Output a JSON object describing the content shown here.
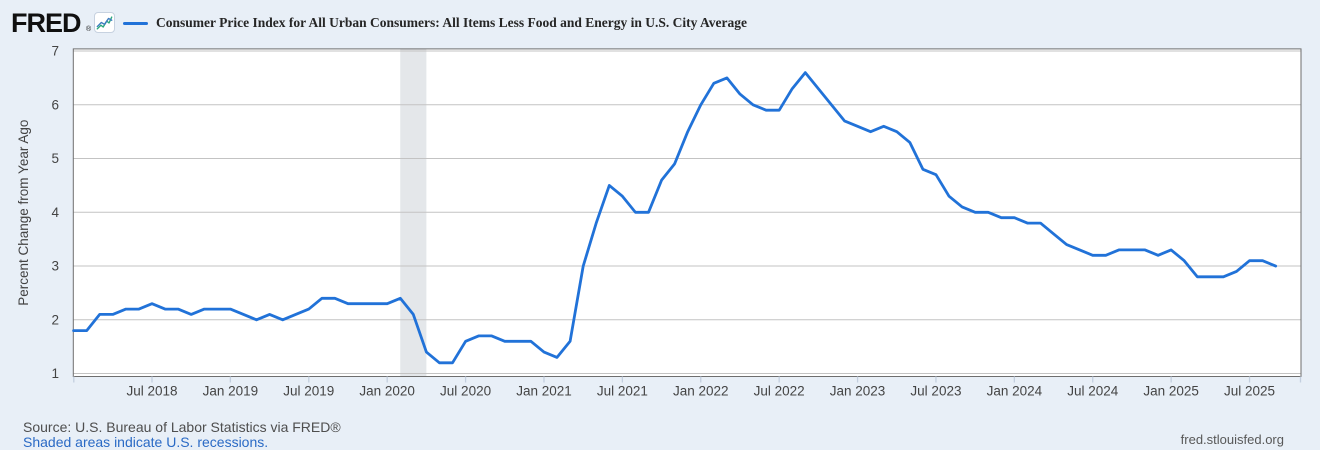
{
  "header": {
    "logo_text": "FRED",
    "logo_mark": "®"
  },
  "footer": {
    "source_text": "Source: U.S. Bureau of Labor Statistics via FRED®",
    "recession_note": "Shaded areas indicate U.S. recessions.",
    "site_url": "fred.stlouisfed.org"
  },
  "colors": {
    "line": "#2172d8",
    "background": "#e8eff7",
    "plot_background": "#ffffff",
    "gridline": "#c3c3c3",
    "plot_border": "#6e6e6e",
    "recession_band": "#e4e7ea",
    "tick_mark": "#c3cfdf",
    "axis_text": "#444444",
    "link": "#2a6ac5",
    "muted_text": "#4e4e4e",
    "icon_blue": "#3b7bbf",
    "icon_green": "#2aa87c"
  },
  "chart_data": {
    "type": "line",
    "title": "Consumer Price Index for All Urban Consumers: All Items Less Food and Energy in U.S. City Average",
    "ylabel": "Percent Change from Year Ago",
    "ylim": [
      1,
      7
    ],
    "y_ticks": [
      1,
      2,
      3,
      4,
      5,
      6,
      7
    ],
    "x_tick_labels": [
      "Jul 2018",
      "Jan 2019",
      "Jul 2019",
      "Jan 2020",
      "Jul 2020",
      "Jan 2021",
      "Jul 2021",
      "Jan 2022",
      "Jul 2022",
      "Jan 2023",
      "Jul 2023",
      "Jan 2024",
      "Jul 2024",
      "Jan 2025",
      "Jul 2025"
    ],
    "frequency": "monthly",
    "start_month": "2018-01",
    "end_month": "2025-09",
    "recession_bands": [
      {
        "start": "2020-02",
        "end": "2020-04"
      }
    ],
    "series": [
      {
        "name": "Consumer Price Index for All Urban Consumers: All Items Less Food and Energy in U.S. City Average",
        "values": [
          1.8,
          1.8,
          2.1,
          2.1,
          2.2,
          2.2,
          2.3,
          2.2,
          2.2,
          2.1,
          2.2,
          2.2,
          2.2,
          2.1,
          2.0,
          2.1,
          2.0,
          2.1,
          2.2,
          2.4,
          2.4,
          2.3,
          2.3,
          2.3,
          2.3,
          2.4,
          2.1,
          1.4,
          1.2,
          1.2,
          1.6,
          1.7,
          1.7,
          1.6,
          1.6,
          1.6,
          1.4,
          1.3,
          1.6,
          3.0,
          3.8,
          4.5,
          4.3,
          4.0,
          4.0,
          4.6,
          4.9,
          5.5,
          6.0,
          6.4,
          6.5,
          6.2,
          6.0,
          5.9,
          5.9,
          6.3,
          6.6,
          6.3,
          6.0,
          5.7,
          5.6,
          5.5,
          5.6,
          5.5,
          5.3,
          4.8,
          4.7,
          4.3,
          4.1,
          4.0,
          4.0,
          3.9,
          3.9,
          3.8,
          3.8,
          3.6,
          3.4,
          3.3,
          3.2,
          3.2,
          3.3,
          3.3,
          3.3,
          3.2,
          3.3,
          3.1,
          2.8,
          2.8,
          2.8,
          2.9,
          3.1,
          3.1,
          3.0
        ]
      }
    ],
    "legend_position": "top"
  }
}
